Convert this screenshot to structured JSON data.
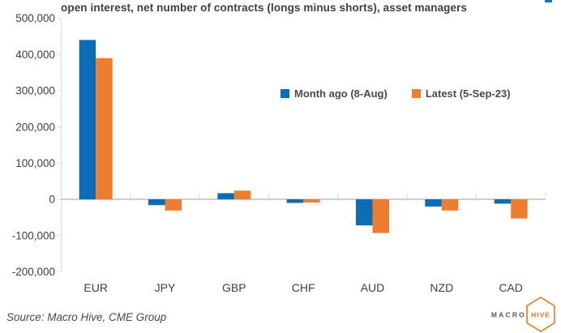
{
  "title": "open interest, net number of contracts (longs minus shorts), asset managers",
  "decor": {
    "top_right_marker_color": "#1d70b9"
  },
  "legend": {
    "items": [
      {
        "label": "Month ago (8-Aug)",
        "color": "#0c6db4"
      },
      {
        "label": "Latest (5-Sep-23)",
        "color": "#ed7d31"
      }
    ]
  },
  "source_note": "Source: Macro Hive, CME Group",
  "logo": {
    "left": "MACRO",
    "right": "HIVE",
    "accent": "#e87722",
    "gray": "#58595b"
  },
  "chart_data": {
    "type": "bar",
    "title": "open interest, net number of contracts (longs minus shorts), asset managers",
    "categories": [
      "EUR",
      "JPY",
      "GBP",
      "CHF",
      "AUD",
      "NZD",
      "CAD"
    ],
    "series": [
      {
        "name": "Month ago (8-Aug)",
        "color": "#0c6db4",
        "values": [
          440000,
          -16000,
          17000,
          -10000,
          -72000,
          -20000,
          -12000
        ]
      },
      {
        "name": "Latest (5-Sep-23)",
        "color": "#ed7d31",
        "values": [
          390000,
          -31000,
          24000,
          -9000,
          -93000,
          -31000,
          -53000
        ]
      }
    ],
    "xlabel": "",
    "ylabel": "",
    "ylim": [
      -200000,
      500000
    ],
    "ytick_step": 100000,
    "ytick_labels": [
      "-200,000",
      "-100,000",
      "0",
      "100,000",
      "200,000",
      "300,000",
      "400,000",
      "500,000"
    ],
    "grid": false,
    "legend_position": "inside-top-right",
    "axis_color": "#d9d9d9",
    "zero_line_color": "#c6c6c6",
    "text_color": "#404040"
  }
}
